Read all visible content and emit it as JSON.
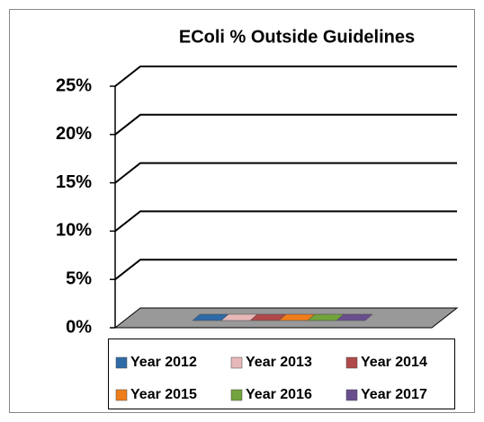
{
  "chart_data": {
    "type": "bar3d",
    "title": "EColi % Outside Guidelines",
    "categories": [
      null
    ],
    "series": [
      {
        "name": "Year 2012",
        "color": "#2e6aa6",
        "values": [
          0
        ]
      },
      {
        "name": "Year 2013",
        "color": "#e6b9b8",
        "values": [
          0
        ]
      },
      {
        "name": "Year 2014",
        "color": "#b04a4a",
        "values": [
          0
        ]
      },
      {
        "name": "Year 2015",
        "color": "#f07d1a",
        "values": [
          0
        ]
      },
      {
        "name": "Year 2016",
        "color": "#72a33c",
        "values": [
          0
        ]
      },
      {
        "name": "Year 2017",
        "color": "#6a4f8f",
        "values": [
          0
        ]
      }
    ],
    "ylim": [
      0,
      25
    ],
    "yticks": [
      {
        "value": 0,
        "label": "0%"
      },
      {
        "value": 5,
        "label": "5%"
      },
      {
        "value": 10,
        "label": "10%"
      },
      {
        "value": 15,
        "label": "15%"
      },
      {
        "value": 20,
        "label": "20%"
      },
      {
        "value": 25,
        "label": "25%"
      }
    ],
    "grid": true,
    "legend": "bottom"
  }
}
